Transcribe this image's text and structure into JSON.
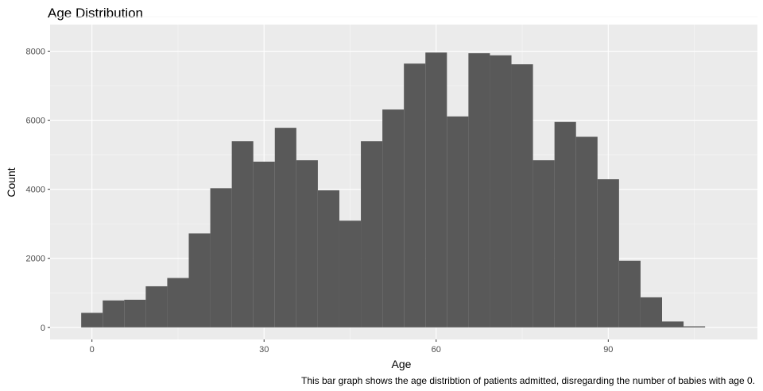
{
  "chart_data": {
    "type": "bar",
    "title": "Age Distribution",
    "xlabel": "Age",
    "ylabel": "Count",
    "caption": "This bar graph shows the age distribtion of patients admitted, disregarding the number of babies with age 0.",
    "bin_width": 3.75,
    "bins": [
      {
        "x_start": -1.875,
        "x_end": 1.875,
        "count": 420
      },
      {
        "x_start": 1.875,
        "x_end": 5.625,
        "count": 780
      },
      {
        "x_start": 5.625,
        "x_end": 9.375,
        "count": 800
      },
      {
        "x_start": 9.375,
        "x_end": 13.125,
        "count": 1190
      },
      {
        "x_start": 13.125,
        "x_end": 16.875,
        "count": 1430
      },
      {
        "x_start": 16.875,
        "x_end": 20.625,
        "count": 2720
      },
      {
        "x_start": 20.625,
        "x_end": 24.375,
        "count": 4030
      },
      {
        "x_start": 24.375,
        "x_end": 28.125,
        "count": 5390
      },
      {
        "x_start": 28.125,
        "x_end": 31.875,
        "count": 4800
      },
      {
        "x_start": 31.875,
        "x_end": 35.625,
        "count": 5780
      },
      {
        "x_start": 35.625,
        "x_end": 39.375,
        "count": 4840
      },
      {
        "x_start": 39.375,
        "x_end": 43.125,
        "count": 3970
      },
      {
        "x_start": 43.125,
        "x_end": 46.875,
        "count": 3090
      },
      {
        "x_start": 46.875,
        "x_end": 50.625,
        "count": 5390
      },
      {
        "x_start": 50.625,
        "x_end": 54.375,
        "count": 6310
      },
      {
        "x_start": 54.375,
        "x_end": 58.125,
        "count": 7640
      },
      {
        "x_start": 58.125,
        "x_end": 61.875,
        "count": 7960
      },
      {
        "x_start": 61.875,
        "x_end": 65.625,
        "count": 6110
      },
      {
        "x_start": 65.625,
        "x_end": 69.375,
        "count": 7940
      },
      {
        "x_start": 69.375,
        "x_end": 73.125,
        "count": 7880
      },
      {
        "x_start": 73.125,
        "x_end": 76.875,
        "count": 7620
      },
      {
        "x_start": 76.875,
        "x_end": 80.625,
        "count": 4840
      },
      {
        "x_start": 80.625,
        "x_end": 84.375,
        "count": 5950
      },
      {
        "x_start": 84.375,
        "x_end": 88.125,
        "count": 5520
      },
      {
        "x_start": 88.125,
        "x_end": 91.875,
        "count": 4290
      },
      {
        "x_start": 91.875,
        "x_end": 95.625,
        "count": 1930
      },
      {
        "x_start": 95.625,
        "x_end": 99.375,
        "count": 870
      },
      {
        "x_start": 99.375,
        "x_end": 103.125,
        "count": 170
      },
      {
        "x_start": 103.125,
        "x_end": 106.875,
        "count": 30
      }
    ],
    "xlim": [
      -7.3,
      116.0
    ],
    "ylim": [
      -350,
      8770
    ],
    "x_ticks": [
      0,
      30,
      60,
      90
    ],
    "x_tick_labels": [
      "0",
      "30",
      "60",
      "90"
    ],
    "y_ticks": [
      0,
      2000,
      4000,
      6000,
      8000
    ],
    "y_tick_labels": [
      "0",
      "2000",
      "4000",
      "6000",
      "8000"
    ],
    "grid": true,
    "legend": "none",
    "colors": {
      "bar_fill": "#595959",
      "panel_background": "#ebebeb",
      "grid_major": "#ffffff",
      "grid_minor": "#f5f5f5",
      "tick_text": "#4d4d4d"
    }
  }
}
